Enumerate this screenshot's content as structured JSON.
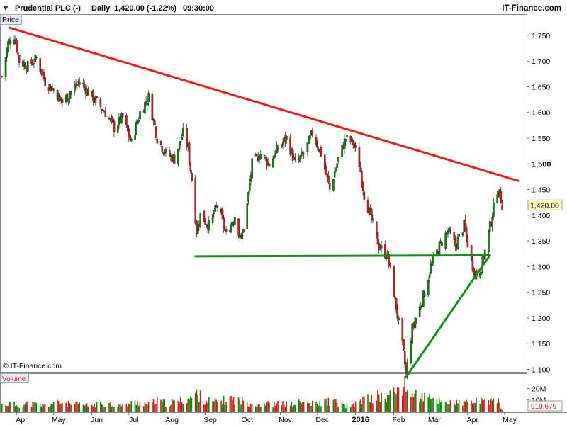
{
  "header": {
    "instrument": "Prudential PLC (-)",
    "interval": "Daily",
    "last": "1,420.00 (-1.22%)",
    "time": "09:30:00",
    "brand": "IT-Finance.com"
  },
  "panel_labels": {
    "price": "Price",
    "volume": "Volume"
  },
  "watermark": "© IT-Finance.com",
  "colors": {
    "up": "#0a8a0a",
    "down": "#d01c1c",
    "trend_down": "#ee1c1c",
    "trend_up": "#1a8a1a",
    "price_box_bg": "#ffffc0"
  },
  "chart_data": {
    "type": "candlestick",
    "ylim": [
      1070,
      1770
    ],
    "yticks": [
      1100,
      1150,
      1200,
      1250,
      1300,
      1350,
      1400,
      1450,
      1500,
      1550,
      1600,
      1650,
      1700,
      1750
    ],
    "ytick_labels": [
      "1,100",
      "1,150",
      "1,200",
      "1,250",
      "1,300",
      "1,350",
      "1,400",
      "1,450",
      "1,500",
      "1,550",
      "1,600",
      "1,650",
      "1,700",
      "1,750"
    ],
    "bold_ytick": "1,500",
    "xticks": [
      {
        "label": "Apr",
        "date": "2015-04-01"
      },
      {
        "label": "May",
        "date": "2015-05-01"
      },
      {
        "label": "Jun",
        "date": "2015-06-01"
      },
      {
        "label": "Jul",
        "date": "2015-07-01"
      },
      {
        "label": "Aug",
        "date": "2015-08-01"
      },
      {
        "label": "Sep",
        "date": "2015-09-01"
      },
      {
        "label": "Oct",
        "date": "2015-10-01"
      },
      {
        "label": "Nov",
        "date": "2015-11-01"
      },
      {
        "label": "Dec",
        "date": "2015-12-01"
      },
      {
        "label": "2016",
        "date": "2016-01-01",
        "bold": true
      },
      {
        "label": "Feb",
        "date": "2016-02-01"
      },
      {
        "label": "Mar",
        "date": "2016-03-01"
      },
      {
        "label": "Apr",
        "date": "2016-04-01"
      },
      {
        "label": "May",
        "date": "2016-05-01"
      }
    ],
    "last_price": 1420,
    "last_price_label": "1,420.00",
    "close_path": [
      [
        "2015-03-20",
        1670
      ],
      [
        "2015-03-25",
        1735
      ],
      [
        "2015-03-30",
        1750
      ],
      [
        "2015-04-03",
        1700
      ],
      [
        "2015-04-10",
        1690
      ],
      [
        "2015-04-17",
        1705
      ],
      [
        "2015-04-24",
        1660
      ],
      [
        "2015-05-01",
        1645
      ],
      [
        "2015-05-08",
        1620
      ],
      [
        "2015-05-15",
        1640
      ],
      [
        "2015-05-22",
        1660
      ],
      [
        "2015-05-29",
        1640
      ],
      [
        "2015-06-05",
        1620
      ],
      [
        "2015-06-12",
        1600
      ],
      [
        "2015-06-19",
        1570
      ],
      [
        "2015-06-26",
        1590
      ],
      [
        "2015-07-03",
        1540
      ],
      [
        "2015-07-10",
        1600
      ],
      [
        "2015-07-17",
        1630
      ],
      [
        "2015-07-24",
        1550
      ],
      [
        "2015-07-31",
        1520
      ],
      [
        "2015-08-07",
        1510
      ],
      [
        "2015-08-14",
        1560
      ],
      [
        "2015-08-18",
        1530
      ],
      [
        "2015-08-21",
        1470
      ],
      [
        "2015-08-25",
        1370
      ],
      [
        "2015-08-28",
        1400
      ],
      [
        "2015-09-04",
        1380
      ],
      [
        "2015-09-11",
        1420
      ],
      [
        "2015-09-18",
        1360
      ],
      [
        "2015-09-25",
        1400
      ],
      [
        "2015-09-30",
        1350
      ],
      [
        "2015-10-05",
        1420
      ],
      [
        "2015-10-09",
        1500
      ],
      [
        "2015-10-16",
        1520
      ],
      [
        "2015-10-23",
        1500
      ],
      [
        "2015-10-30",
        1530
      ],
      [
        "2015-11-06",
        1550
      ],
      [
        "2015-11-13",
        1500
      ],
      [
        "2015-11-20",
        1520
      ],
      [
        "2015-11-27",
        1560
      ],
      [
        "2015-12-04",
        1520
      ],
      [
        "2015-12-11",
        1450
      ],
      [
        "2015-12-18",
        1510
      ],
      [
        "2015-12-24",
        1550
      ],
      [
        "2015-12-30",
        1540
      ],
      [
        "2016-01-04",
        1500
      ],
      [
        "2016-01-08",
        1440
      ],
      [
        "2016-01-14",
        1390
      ],
      [
        "2016-01-20",
        1340
      ],
      [
        "2016-01-27",
        1320
      ],
      [
        "2016-02-03",
        1220
      ],
      [
        "2016-02-09",
        1130
      ],
      [
        "2016-02-11",
        1090
      ],
      [
        "2016-02-16",
        1180
      ],
      [
        "2016-02-22",
        1220
      ],
      [
        "2016-02-26",
        1250
      ],
      [
        "2016-03-02",
        1300
      ],
      [
        "2016-03-09",
        1340
      ],
      [
        "2016-03-16",
        1370
      ],
      [
        "2016-03-22",
        1340
      ],
      [
        "2016-03-29",
        1380
      ],
      [
        "2016-04-04",
        1310
      ],
      [
        "2016-04-08",
        1280
      ],
      [
        "2016-04-12",
        1300
      ],
      [
        "2016-04-15",
        1330
      ],
      [
        "2016-04-20",
        1390
      ],
      [
        "2016-04-25",
        1450
      ],
      [
        "2016-04-27",
        1440
      ],
      [
        "2016-04-29",
        1420
      ]
    ],
    "trendlines": [
      {
        "name": "resistance",
        "color": "#ee1c1c",
        "points": [
          [
            "2015-03-26",
            1765
          ],
          [
            "2016-05-12",
            1467
          ]
        ]
      },
      {
        "name": "support",
        "color": "#1a8a1a",
        "points": [
          [
            "2015-08-24",
            1320
          ],
          [
            "2016-04-19",
            1322
          ]
        ]
      },
      {
        "name": "rising",
        "color": "#1a8a1a",
        "points": [
          [
            "2016-02-11",
            1085
          ],
          [
            "2016-04-19",
            1322
          ]
        ]
      }
    ],
    "volume": {
      "ytick_labels": [
        "20M",
        "10M"
      ],
      "yticks": [
        20,
        10
      ],
      "ylim": [
        0,
        30
      ],
      "last_label": "919,679",
      "bars": [
        [
          "2015-03-20",
          6
        ],
        [
          "2015-03-27",
          7
        ],
        [
          "2015-04-03",
          5
        ],
        [
          "2015-04-10",
          7
        ],
        [
          "2015-04-17",
          6
        ],
        [
          "2015-04-24",
          5
        ],
        [
          "2015-05-01",
          7
        ],
        [
          "2015-05-08",
          8
        ],
        [
          "2015-05-15",
          6
        ],
        [
          "2015-05-22",
          6
        ],
        [
          "2015-05-29",
          5
        ],
        [
          "2015-06-05",
          6
        ],
        [
          "2015-06-12",
          7
        ],
        [
          "2015-06-19",
          6
        ],
        [
          "2015-06-26",
          5
        ],
        [
          "2015-07-03",
          7
        ],
        [
          "2015-07-10",
          8
        ],
        [
          "2015-07-17",
          6
        ],
        [
          "2015-07-24",
          9
        ],
        [
          "2015-07-31",
          7
        ],
        [
          "2015-08-07",
          8
        ],
        [
          "2015-08-14",
          10
        ],
        [
          "2015-08-21",
          12
        ],
        [
          "2015-08-25",
          15
        ],
        [
          "2015-09-01",
          10
        ],
        [
          "2015-09-08",
          8
        ],
        [
          "2015-09-15",
          9
        ],
        [
          "2015-09-22",
          11
        ],
        [
          "2015-09-29",
          9
        ],
        [
          "2015-10-06",
          8
        ],
        [
          "2015-10-13",
          6
        ],
        [
          "2015-10-20",
          7
        ],
        [
          "2015-10-27",
          6
        ],
        [
          "2015-11-03",
          7
        ],
        [
          "2015-11-10",
          6
        ],
        [
          "2015-11-17",
          8
        ],
        [
          "2015-11-24",
          7
        ],
        [
          "2015-12-01",
          6
        ],
        [
          "2015-12-08",
          9
        ],
        [
          "2015-12-15",
          8
        ],
        [
          "2015-12-22",
          5
        ],
        [
          "2015-12-29",
          4
        ],
        [
          "2016-01-05",
          10
        ],
        [
          "2016-01-12",
          11
        ],
        [
          "2016-01-19",
          13
        ],
        [
          "2016-01-26",
          12
        ],
        [
          "2016-02-02",
          17
        ],
        [
          "2016-02-05",
          20
        ],
        [
          "2016-02-09",
          23
        ],
        [
          "2016-02-12",
          18
        ],
        [
          "2016-02-19",
          14
        ],
        [
          "2016-02-26",
          12
        ],
        [
          "2016-03-04",
          10
        ],
        [
          "2016-03-11",
          9
        ],
        [
          "2016-03-18",
          8
        ],
        [
          "2016-03-25",
          7
        ],
        [
          "2016-04-01",
          8
        ],
        [
          "2016-04-08",
          9
        ],
        [
          "2016-04-15",
          8
        ],
        [
          "2016-04-22",
          10
        ],
        [
          "2016-04-26",
          9
        ],
        [
          "2016-04-29",
          1
        ]
      ]
    }
  }
}
